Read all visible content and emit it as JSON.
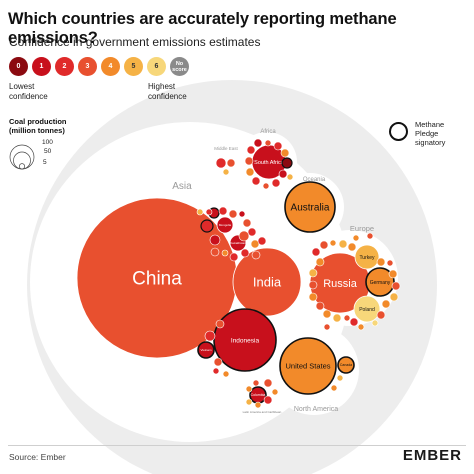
{
  "title": "Which countries are accurately reporting methane emissions?",
  "subtitle": "Confidence in government emissions estimates",
  "legend": {
    "scale": [
      {
        "label": "0",
        "color": "#8b0a10"
      },
      {
        "label": "1",
        "color": "#c8101c"
      },
      {
        "label": "2",
        "color": "#e02a2a"
      },
      {
        "label": "3",
        "color": "#e8502f"
      },
      {
        "label": "4",
        "color": "#f28a2a"
      },
      {
        "label": "5",
        "color": "#f5b246"
      },
      {
        "label": "6",
        "color": "#f7d77a"
      },
      {
        "label": "No score",
        "color": "#8a8a8a"
      }
    ],
    "lowest": "Lowest confidence",
    "highest": "Highest confidence",
    "size_title": "Coal production (million tonnes)",
    "size_values": [
      "100",
      "50",
      "5"
    ],
    "pledge": "Methane Pledge signatory"
  },
  "footer": {
    "source": "Source: Ember",
    "brand": "EMBER"
  },
  "chart_data": {
    "type": "bubble",
    "size_measure": "Coal production (million tonnes)",
    "color_measure": "Confidence score (0-6)",
    "regions": [
      {
        "name": "Africa",
        "label": "Africa"
      },
      {
        "name": "Asia",
        "label": "Asia"
      },
      {
        "name": "Oceania",
        "label": "Oceania"
      },
      {
        "name": "Europe",
        "label": "Europe"
      },
      {
        "name": "North America",
        "label": "North America"
      },
      {
        "name": "Middle East",
        "label": "Middle East"
      }
    ],
    "countries": [
      {
        "label": "China",
        "region": "Asia",
        "score": 3,
        "pledge": false
      },
      {
        "label": "India",
        "region": "Asia",
        "score": 3,
        "pledge": false
      },
      {
        "label": "Indonesia",
        "region": "Asia",
        "score": 1,
        "pledge": true
      },
      {
        "label": "Australia",
        "region": "Oceania",
        "score": 4,
        "pledge": true
      },
      {
        "label": "Russia",
        "region": "Europe",
        "score": 3,
        "pledge": false
      },
      {
        "label": "Turkey",
        "region": "Europe",
        "score": 5,
        "pledge": false
      },
      {
        "label": "Germany",
        "region": "Europe",
        "score": 4,
        "pledge": true
      },
      {
        "label": "Poland",
        "region": "Europe",
        "score": 6,
        "pledge": false
      },
      {
        "label": "United States",
        "region": "North America",
        "score": 4,
        "pledge": true
      },
      {
        "label": "Canada",
        "region": "North America",
        "score": 4,
        "pledge": true
      },
      {
        "label": "Colombia",
        "region": "North America",
        "score": 1,
        "pledge": true
      },
      {
        "label": "South Africa",
        "region": "Africa",
        "score": 1,
        "pledge": false
      },
      {
        "label": "Mongolia",
        "region": "Asia",
        "score": 1,
        "pledge": false
      },
      {
        "label": "Kazakhstan",
        "region": "Asia",
        "score": 1,
        "pledge": false
      },
      {
        "label": "Vietnam",
        "region": "Asia",
        "score": 1,
        "pledge": true
      },
      {
        "label": "Latin America and Caribbean",
        "region": "North America",
        "score": 3,
        "pledge": false
      }
    ]
  }
}
